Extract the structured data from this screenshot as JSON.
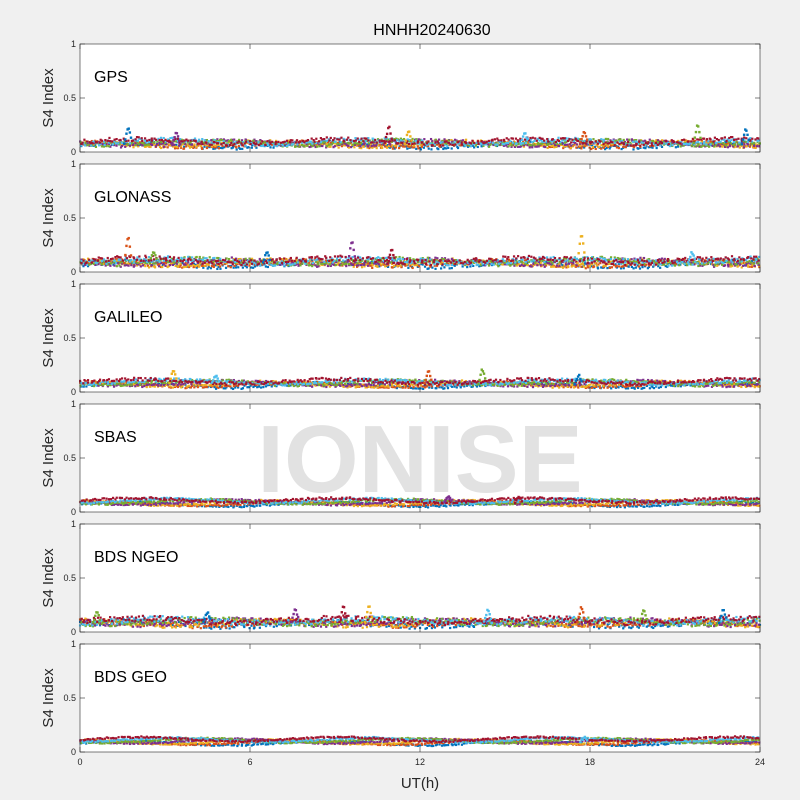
{
  "figure": {
    "title": "HNHH20240630",
    "xlabel": "UT(h)",
    "watermark": "IONISE"
  },
  "chart_data": [
    {
      "type": "scatter",
      "label": "GPS",
      "ylabel": "S4 Index",
      "ylim": [
        0,
        1
      ],
      "yticks": [
        "0",
        "0.5",
        "1"
      ],
      "xlim": [
        0,
        24
      ],
      "xticks": [
        "0",
        "6",
        "12",
        "18",
        "24"
      ],
      "baseline": 0.08,
      "noise": 0.04,
      "spikes": [
        [
          1.7,
          0.24
        ],
        [
          3.4,
          0.18
        ],
        [
          10.9,
          0.25
        ],
        [
          11.6,
          0.2
        ],
        [
          15.7,
          0.19
        ],
        [
          17.8,
          0.2
        ],
        [
          21.8,
          0.27
        ],
        [
          23.5,
          0.22
        ]
      ]
    },
    {
      "type": "scatter",
      "label": "GLONASS",
      "ylabel": "S4 Index",
      "ylim": [
        0,
        1
      ],
      "yticks": [
        "0",
        "0.5",
        "1"
      ],
      "xlim": [
        0,
        24
      ],
      "xticks": [
        "0",
        "6",
        "12",
        "18",
        "24"
      ],
      "baseline": 0.09,
      "noise": 0.05,
      "spikes": [
        [
          1.7,
          0.34
        ],
        [
          2.6,
          0.2
        ],
        [
          6.6,
          0.2
        ],
        [
          9.6,
          0.3
        ],
        [
          11.0,
          0.22
        ],
        [
          17.7,
          0.38
        ],
        [
          21.6,
          0.19
        ]
      ]
    },
    {
      "type": "scatter",
      "label": "GALILEO",
      "ylabel": "S4 Index",
      "ylim": [
        0,
        1
      ],
      "yticks": [
        "0",
        "0.5",
        "1"
      ],
      "xlim": [
        0,
        24
      ],
      "xticks": [
        "0",
        "6",
        "12",
        "18",
        "24"
      ],
      "baseline": 0.08,
      "noise": 0.03,
      "spikes": [
        [
          3.3,
          0.22
        ],
        [
          4.8,
          0.16
        ],
        [
          12.3,
          0.2
        ],
        [
          14.2,
          0.22
        ],
        [
          17.6,
          0.16
        ]
      ]
    },
    {
      "type": "scatter",
      "label": "SBAS",
      "ylabel": "S4 Index",
      "ylim": [
        0,
        1
      ],
      "yticks": [
        "0",
        "0.5",
        "1"
      ],
      "xlim": [
        0,
        24
      ],
      "xticks": [
        "0",
        "6",
        "12",
        "18",
        "24"
      ],
      "baseline": 0.09,
      "noise": 0.02,
      "spikes": [
        [
          13.0,
          0.15
        ],
        [
          15.5,
          0.14
        ]
      ]
    },
    {
      "type": "scatter",
      "label": "BDS NGEO",
      "ylabel": "S4 Index",
      "ylim": [
        0,
        1
      ],
      "yticks": [
        "0",
        "0.5",
        "1"
      ],
      "xlim": [
        0,
        24
      ],
      "xticks": [
        "0",
        "6",
        "12",
        "18",
        "24"
      ],
      "baseline": 0.09,
      "noise": 0.05,
      "spikes": [
        [
          0.6,
          0.19
        ],
        [
          4.5,
          0.19
        ],
        [
          7.6,
          0.23
        ],
        [
          9.3,
          0.25
        ],
        [
          10.2,
          0.25
        ],
        [
          14.4,
          0.22
        ],
        [
          17.7,
          0.24
        ],
        [
          19.9,
          0.21
        ],
        [
          22.7,
          0.21
        ]
      ]
    },
    {
      "type": "scatter",
      "label": "BDS GEO",
      "ylabel": "S4 Index",
      "ylim": [
        0,
        1
      ],
      "yticks": [
        "0",
        "0.5",
        "1"
      ],
      "xlim": [
        0,
        24
      ],
      "xticks": [
        "0",
        "6",
        "12",
        "18",
        "24"
      ],
      "baseline": 0.1,
      "noise": 0.015,
      "spikes": [
        [
          17.8,
          0.14
        ]
      ]
    }
  ],
  "series_colors": [
    "#0072BD",
    "#D95319",
    "#EDB120",
    "#7E2F8E",
    "#77AC30",
    "#4DBEEE",
    "#A2142F"
  ]
}
